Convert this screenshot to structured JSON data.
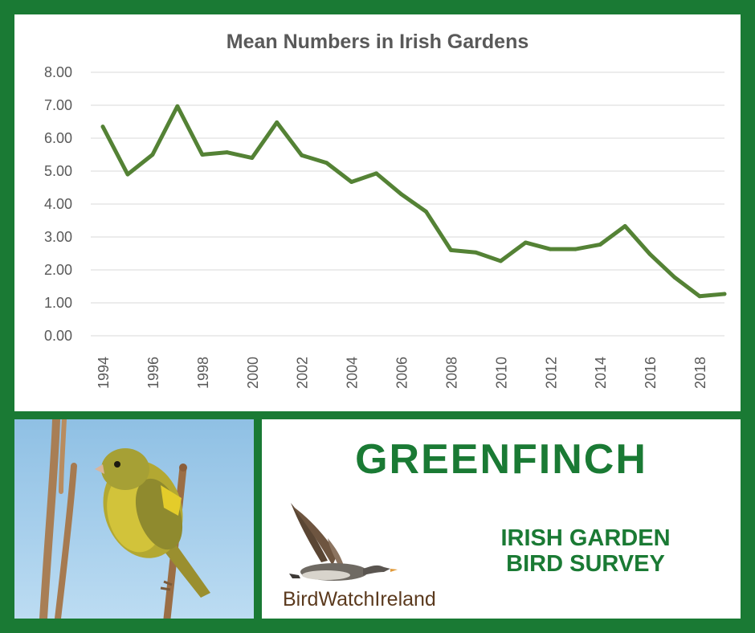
{
  "chart_data": {
    "type": "line",
    "title": "Mean Numbers in Irish Gardens",
    "xlabel": "",
    "ylabel": "",
    "x": [
      1994,
      1995,
      1996,
      1997,
      1998,
      1999,
      2000,
      2001,
      2002,
      2003,
      2004,
      2005,
      2006,
      2007,
      2008,
      2009,
      2010,
      2011,
      2012,
      2013,
      2014,
      2015,
      2016,
      2017,
      2018,
      2019
    ],
    "series": [
      {
        "values": [
          6.35,
          4.9,
          5.5,
          6.97,
          5.5,
          5.57,
          5.4,
          6.48,
          5.48,
          5.25,
          4.67,
          4.93,
          4.3,
          3.77,
          2.6,
          2.53,
          2.27,
          2.83,
          2.63,
          2.63,
          2.77,
          3.33,
          2.48,
          1.77,
          1.2,
          1.27
        ]
      }
    ],
    "ylim": [
      0,
      8
    ],
    "y_ticks": [
      "0.00",
      "1.00",
      "2.00",
      "3.00",
      "4.00",
      "5.00",
      "6.00",
      "7.00",
      "8.00"
    ],
    "x_ticks": [
      "1994",
      "1996",
      "1998",
      "2000",
      "2002",
      "2004",
      "2006",
      "2008",
      "2010",
      "2012",
      "2014",
      "2016",
      "2018"
    ],
    "grid": true,
    "line_color": "#548235"
  },
  "brand": {
    "species": "GREENFINCH",
    "survey_line1": "IRISH GARDEN",
    "survey_line2": "BIRD SURVEY",
    "logo_part_a": "BirdWatch",
    "logo_part_b": "Ireland"
  },
  "colors": {
    "frame": "#1a7a34",
    "title_text": "#1a7a34",
    "logo_text": "#5b3a1e"
  }
}
